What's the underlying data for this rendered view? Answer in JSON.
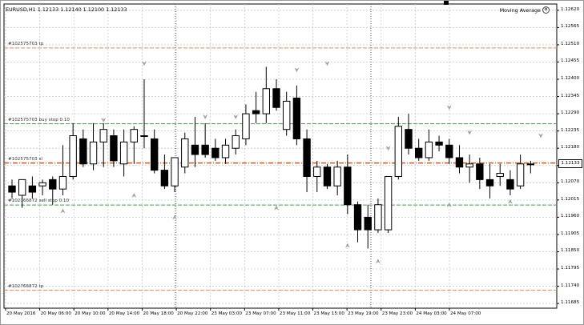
{
  "chart_title": "EURUSD,H1  1.12133 1.12140 1.12100 1.12133",
  "indicator_label": "Moving Average",
  "current_price": "1.12133",
  "colors": {
    "grid": "#c8c8c8",
    "tp": "#e08a50",
    "pending": "#4a9a4a",
    "sl": "#c85a20",
    "bull": "#ffffff",
    "bear": "#000000",
    "arrow": "#a0a0a0"
  },
  "order_lines": [
    {
      "label": "#102575703 tp",
      "price": 1.125,
      "kind": "tp"
    },
    {
      "label": "#102575703 buy stop 0.10",
      "price": 1.12258,
      "kind": "pending"
    },
    {
      "label": "#102575703 sl",
      "price": 1.12133,
      "kind": "sl"
    },
    {
      "label": "#102766872 sell stop 0.10",
      "price": 1.11999,
      "kind": "pending"
    },
    {
      "label": "#102766872 tp",
      "price": 1.11727,
      "kind": "tp"
    }
  ],
  "chart_data": {
    "type": "candlestick",
    "symbol": "EURUSD",
    "timeframe": "H1",
    "y_ticks": [
      "1.12620",
      "1.12565",
      "1.12510",
      "1.12455",
      "1.12400",
      "1.12345",
      "1.12290",
      "1.12235",
      "1.12180",
      "1.12125",
      "1.12070",
      "1.12015",
      "1.11960",
      "1.11905",
      "1.11850",
      "1.11795",
      "1.11740",
      "1.11685"
    ],
    "ylim": [
      1.1167,
      1.1264
    ],
    "x_labels": [
      "20 May 2016",
      "20 May 06:00",
      "20 May 10:00",
      "20 May 14:00",
      "20 May 18:00",
      "20 May 22:00",
      "23 May 03:00",
      "23 May 07:00",
      "23 May 11:00",
      "23 May 15:00",
      "23 May 19:00",
      "23 May 23:00",
      "24 May 03:00",
      "24 May 07:00"
    ],
    "candles": [
      {
        "o": 1.1206,
        "h": 1.1208,
        "l": 1.1202,
        "c": 1.1204
      },
      {
        "o": 1.1203,
        "h": 1.1208,
        "l": 1.1199,
        "c": 1.1208
      },
      {
        "o": 1.1206,
        "h": 1.1209,
        "l": 1.1202,
        "c": 1.1204
      },
      {
        "o": 1.1206,
        "h": 1.1208,
        "l": 1.1203,
        "c": 1.1207
      },
      {
        "o": 1.1208,
        "h": 1.1209,
        "l": 1.12,
        "c": 1.1205
      },
      {
        "o": 1.1205,
        "h": 1.1219,
        "l": 1.1203,
        "c": 1.1209
      },
      {
        "o": 1.1209,
        "h": 1.1226,
        "l": 1.1208,
        "c": 1.1222
      },
      {
        "o": 1.1221,
        "h": 1.1224,
        "l": 1.1212,
        "c": 1.1213
      },
      {
        "o": 1.1213,
        "h": 1.1226,
        "l": 1.1211,
        "c": 1.122
      },
      {
        "o": 1.122,
        "h": 1.1226,
        "l": 1.1212,
        "c": 1.1224
      },
      {
        "o": 1.1222,
        "h": 1.1224,
        "l": 1.1212,
        "c": 1.1214
      },
      {
        "o": 1.1213,
        "h": 1.1224,
        "l": 1.1209,
        "c": 1.122
      },
      {
        "o": 1.122,
        "h": 1.1225,
        "l": 1.1213,
        "c": 1.1224
      },
      {
        "o": 1.1222,
        "h": 1.124,
        "l": 1.1218,
        "c": 1.1222
      },
      {
        "o": 1.1221,
        "h": 1.1224,
        "l": 1.121,
        "c": 1.1211
      },
      {
        "o": 1.1211,
        "h": 1.1216,
        "l": 1.1205,
        "c": 1.1206
      },
      {
        "o": 1.1206,
        "h": 1.1215,
        "l": 1.1204,
        "c": 1.1215
      },
      {
        "o": 1.1212,
        "h": 1.1223,
        "l": 1.121,
        "c": 1.1221
      },
      {
        "o": 1.1219,
        "h": 1.1228,
        "l": 1.1212,
        "c": 1.1216
      },
      {
        "o": 1.1219,
        "h": 1.1226,
        "l": 1.1215,
        "c": 1.1216
      },
      {
        "o": 1.1218,
        "h": 1.1221,
        "l": 1.1214,
        "c": 1.1215
      },
      {
        "o": 1.1215,
        "h": 1.1221,
        "l": 1.1213,
        "c": 1.1219
      },
      {
        "o": 1.1218,
        "h": 1.1224,
        "l": 1.1216,
        "c": 1.1222
      },
      {
        "o": 1.1221,
        "h": 1.1232,
        "l": 1.1219,
        "c": 1.1229
      },
      {
        "o": 1.123,
        "h": 1.1236,
        "l": 1.1226,
        "c": 1.1229
      },
      {
        "o": 1.1229,
        "h": 1.1244,
        "l": 1.1226,
        "c": 1.1237
      },
      {
        "o": 1.1237,
        "h": 1.124,
        "l": 1.123,
        "c": 1.1231
      },
      {
        "o": 1.1224,
        "h": 1.1236,
        "l": 1.1222,
        "c": 1.1233
      },
      {
        "o": 1.1234,
        "h": 1.1238,
        "l": 1.1219,
        "c": 1.1221
      },
      {
        "o": 1.1221,
        "h": 1.1224,
        "l": 1.1204,
        "c": 1.1209
      },
      {
        "o": 1.1209,
        "h": 1.1214,
        "l": 1.1204,
        "c": 1.1212
      },
      {
        "o": 1.1212,
        "h": 1.1213,
        "l": 1.1205,
        "c": 1.1206
      },
      {
        "o": 1.1206,
        "h": 1.1214,
        "l": 1.1203,
        "c": 1.1212
      },
      {
        "o": 1.1212,
        "h": 1.1216,
        "l": 1.1197,
        "c": 1.12
      },
      {
        "o": 1.12,
        "h": 1.1201,
        "l": 1.1188,
        "c": 1.1192
      },
      {
        "o": 1.1196,
        "h": 1.12,
        "l": 1.1186,
        "c": 1.1192
      },
      {
        "o": 1.1192,
        "h": 1.1202,
        "l": 1.1191,
        "c": 1.12
      },
      {
        "o": 1.1192,
        "h": 1.1209,
        "l": 1.1191,
        "c": 1.1209
      },
      {
        "o": 1.1209,
        "h": 1.1228,
        "l": 1.1208,
        "c": 1.1225
      },
      {
        "o": 1.1224,
        "h": 1.1229,
        "l": 1.1216,
        "c": 1.1218
      },
      {
        "o": 1.1218,
        "h": 1.1221,
        "l": 1.1214,
        "c": 1.1215
      },
      {
        "o": 1.1215,
        "h": 1.1224,
        "l": 1.1214,
        "c": 1.122
      },
      {
        "o": 1.122,
        "h": 1.1222,
        "l": 1.1217,
        "c": 1.1219
      },
      {
        "o": 1.1219,
        "h": 1.1221,
        "l": 1.1213,
        "c": 1.1215
      },
      {
        "o": 1.1215,
        "h": 1.1219,
        "l": 1.121,
        "c": 1.1212
      },
      {
        "o": 1.1212,
        "h": 1.1216,
        "l": 1.1207,
        "c": 1.1213
      },
      {
        "o": 1.1213,
        "h": 1.1215,
        "l": 1.1205,
        "c": 1.1208
      },
      {
        "o": 1.1208,
        "h": 1.1213,
        "l": 1.1202,
        "c": 1.1206
      },
      {
        "o": 1.1209,
        "h": 1.1213,
        "l": 1.1206,
        "c": 1.121
      },
      {
        "o": 1.1208,
        "h": 1.1211,
        "l": 1.1203,
        "c": 1.1205
      },
      {
        "o": 1.1206,
        "h": 1.1216,
        "l": 1.1205,
        "c": 1.1213
      },
      {
        "o": 1.1213,
        "h": 1.1214,
        "l": 1.121,
        "c": 1.1213
      }
    ],
    "arrows_up": [
      [
        5,
        1.1198
      ],
      [
        12,
        1.1203
      ],
      [
        16,
        1.1196
      ],
      [
        26,
        1.1199
      ],
      [
        33,
        1.1187
      ],
      [
        36,
        1.1182
      ],
      [
        43,
        1.12
      ],
      [
        49,
        1.1201
      ]
    ],
    "arrows_down": [
      [
        9,
        1.1227
      ],
      [
        13,
        1.1245
      ],
      [
        19,
        1.1228
      ],
      [
        22,
        1.1228
      ],
      [
        28,
        1.1243
      ],
      [
        31,
        1.1245
      ],
      [
        37,
        1.1218
      ],
      [
        43,
        1.1231
      ],
      [
        45,
        1.1223
      ],
      [
        52,
        1.1222
      ]
    ]
  }
}
